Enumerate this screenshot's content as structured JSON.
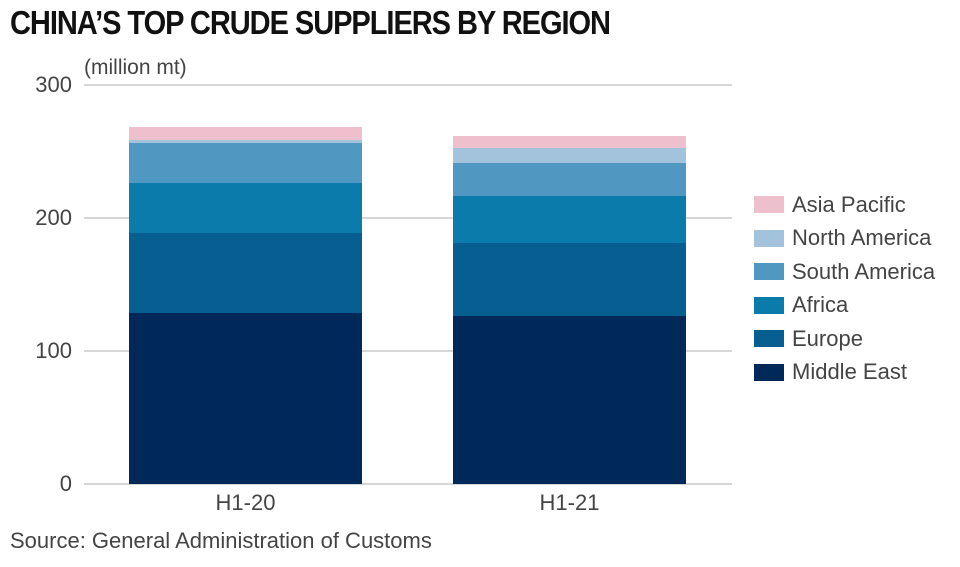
{
  "header": {
    "title": "CHINA’S TOP CRUDE SUPPLIERS BY REGION",
    "unit": "(million mt)"
  },
  "axes": {
    "y_ticks": [
      "300",
      "200",
      "100",
      "0"
    ],
    "x_ticks": [
      "H1-20",
      "H1-21"
    ]
  },
  "legend": {
    "items": [
      {
        "label": "Asia Pacific",
        "color": "#eebfcd"
      },
      {
        "label": "North America",
        "color": "#a3c3dd"
      },
      {
        "label": "South America",
        "color": "#5097c2"
      },
      {
        "label": "Africa",
        "color": "#0a7bab"
      },
      {
        "label": "Europe",
        "color": "#075e91"
      },
      {
        "label": "Middle East",
        "color": "#00295a"
      }
    ]
  },
  "footer": {
    "source": "Source: General Administration of Customs"
  },
  "chart_data": {
    "type": "bar",
    "stacked": true,
    "title": "CHINA’S TOP CRUDE SUPPLIERS BY REGION",
    "ylabel": "(million mt)",
    "xlabel": "",
    "categories": [
      "H1-20",
      "H1-21"
    ],
    "ylim": [
      0,
      300
    ],
    "yticks": [
      0,
      100,
      200,
      300
    ],
    "grid": true,
    "legend_position": "right",
    "series": [
      {
        "name": "Middle East",
        "color": "#00295a",
        "values": [
          128,
          126
        ]
      },
      {
        "name": "Europe",
        "color": "#075e91",
        "values": [
          60,
          55
        ]
      },
      {
        "name": "Africa",
        "color": "#0a7bab",
        "values": [
          38,
          35
        ]
      },
      {
        "name": "South America",
        "color": "#5097c2",
        "values": [
          30,
          25
        ]
      },
      {
        "name": "North America",
        "color": "#a3c3dd",
        "values": [
          2,
          11
        ]
      },
      {
        "name": "Asia Pacific",
        "color": "#eebfcd",
        "values": [
          10,
          9
        ]
      }
    ],
    "totals": [
      268,
      261
    ]
  }
}
